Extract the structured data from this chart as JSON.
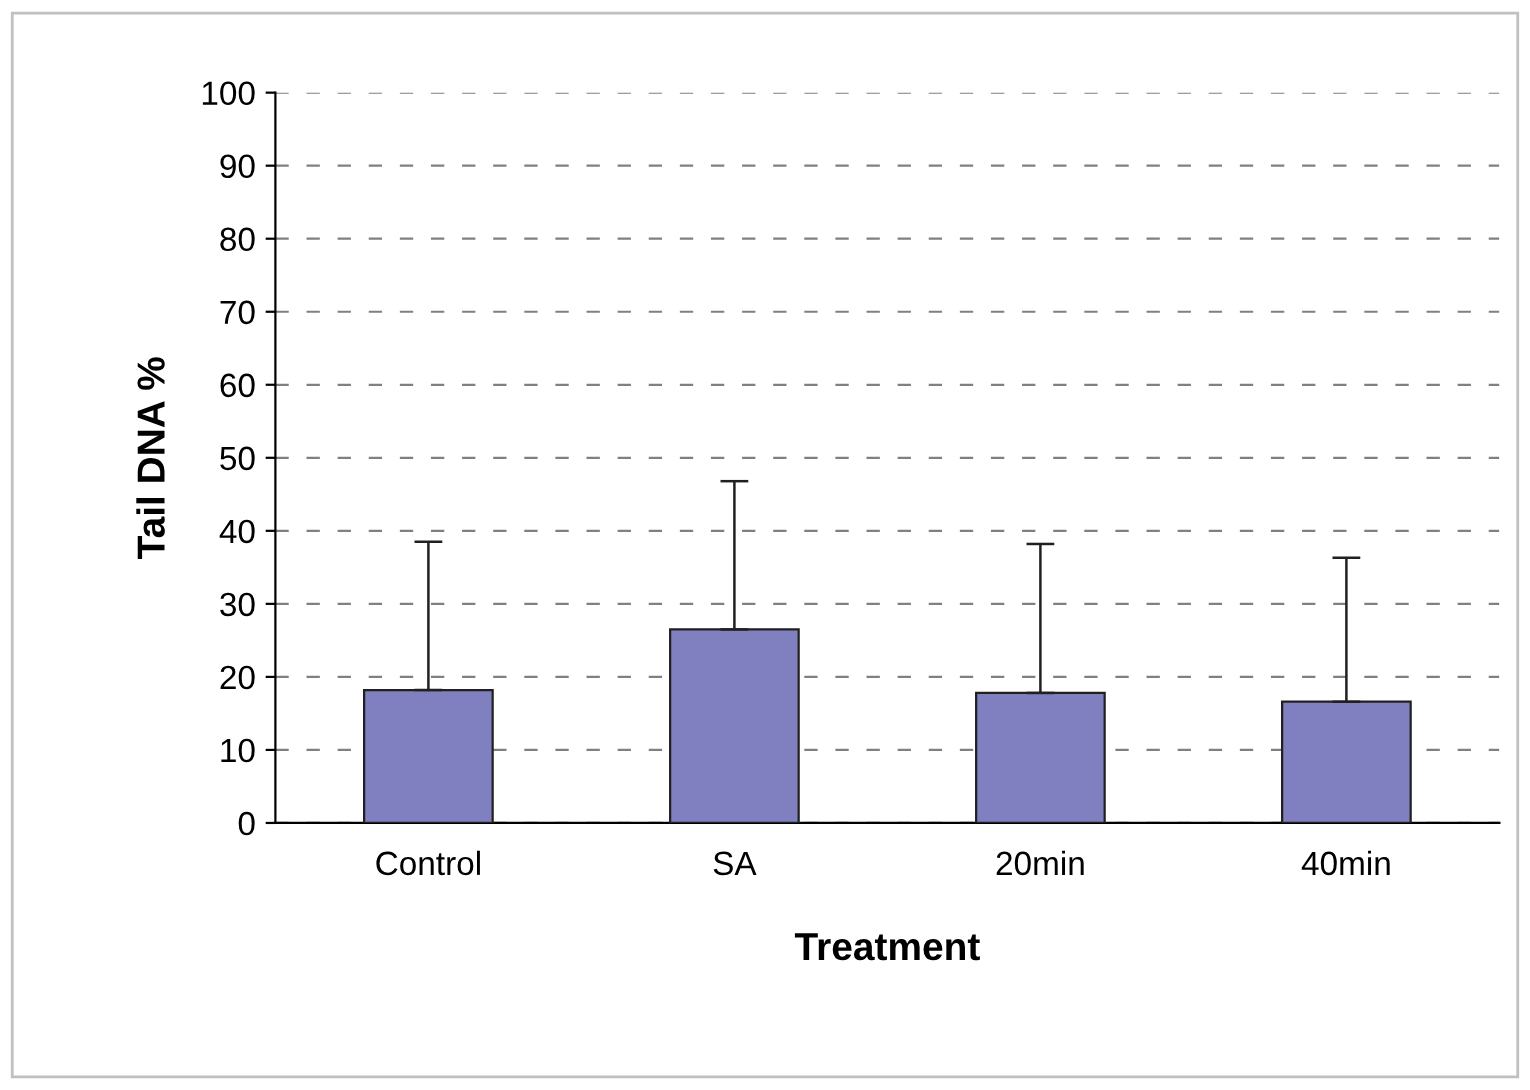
{
  "chart_data": {
    "type": "bar",
    "xlabel": "Treatment",
    "ylabel": "Tail DNA %",
    "categories": [
      "Control",
      "SA",
      "20min",
      "40min"
    ],
    "values": [
      18.2,
      26.5,
      17.8,
      16.6
    ],
    "errors": [
      [
        18.2,
        38.5
      ],
      [
        26.5,
        46.8
      ],
      [
        17.8,
        38.2
      ],
      [
        16.6,
        36.3
      ]
    ],
    "color": "#8080c0",
    "ylim": [
      0,
      100
    ],
    "yticks": [
      0,
      10,
      20,
      30,
      40,
      50,
      60,
      70,
      80,
      90,
      100
    ],
    "grid": "y"
  }
}
